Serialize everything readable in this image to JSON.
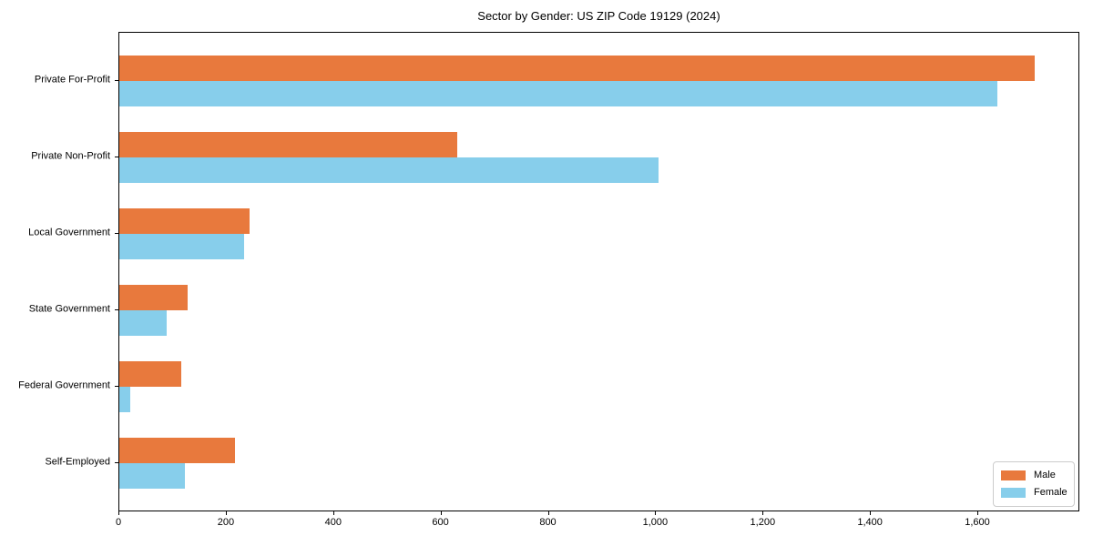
{
  "chart_data": {
    "type": "bar",
    "orientation": "horizontal",
    "title": "Sector by Gender: US ZIP Code 19129 (2024)",
    "xlabel": "",
    "ylabel": "",
    "categories": [
      "Private For-Profit",
      "Private Non-Profit",
      "Local Government",
      "State Government",
      "Federal Government",
      "Self-Employed"
    ],
    "series": [
      {
        "name": "Male",
        "color": "#E8793D",
        "values": [
          1705,
          630,
          243,
          127,
          115,
          215
        ]
      },
      {
        "name": "Female",
        "color": "#87CEEB",
        "values": [
          1635,
          1005,
          233,
          88,
          21,
          122
        ]
      }
    ],
    "xlim": [
      0,
      1790
    ],
    "x_ticks": [
      {
        "value": 0,
        "label": "0"
      },
      {
        "value": 200,
        "label": "200"
      },
      {
        "value": 400,
        "label": "400"
      },
      {
        "value": 600,
        "label": "600"
      },
      {
        "value": 800,
        "label": "800"
      },
      {
        "value": 1000,
        "label": "1,000"
      },
      {
        "value": 1200,
        "label": "1,200"
      },
      {
        "value": 1400,
        "label": "1,400"
      },
      {
        "value": 1600,
        "label": "1,600"
      }
    ],
    "grid": false,
    "legend_position": "lower right"
  }
}
